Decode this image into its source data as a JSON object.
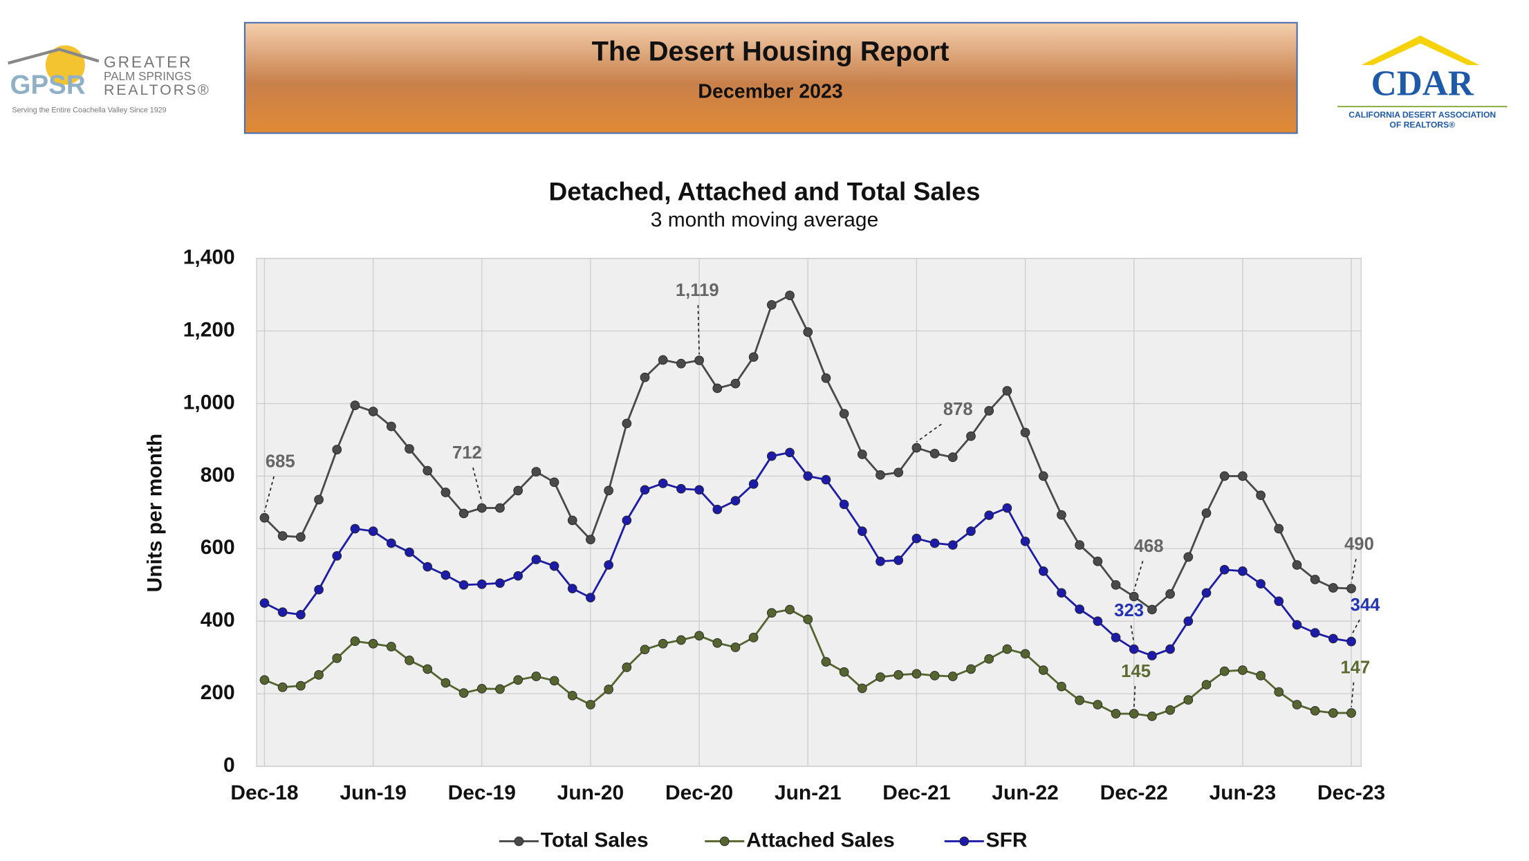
{
  "header": {
    "left_logo": {
      "mark": "GPSR",
      "name_lines": [
        "GREATER",
        "PALM SPRINGS",
        "REALTORS®"
      ],
      "tagline": "Serving the Entire Coachella Valley Since 1929"
    },
    "title": "The Desert Housing Report",
    "subtitle": "December 2023",
    "right_logo": {
      "mark": "CDAR",
      "name_lines": [
        "CALIFORNIA DESERT ASSOCIATION",
        "OF REALTORS®"
      ]
    }
  },
  "chart_data": {
    "type": "line",
    "title": "Detached, Attached and Total Sales",
    "subtitle": "3 month moving average",
    "y_label": "Units per month",
    "categories": [
      "Dec-18",
      null,
      null,
      null,
      null,
      null,
      "Jun-19",
      null,
      null,
      null,
      null,
      null,
      "Dec-19",
      null,
      null,
      null,
      null,
      null,
      "Jun-20",
      null,
      null,
      null,
      null,
      null,
      "Dec-20",
      null,
      null,
      null,
      null,
      null,
      "Jun-21",
      null,
      null,
      null,
      null,
      null,
      "Dec-21",
      null,
      null,
      null,
      null,
      null,
      "Jun-22",
      null,
      null,
      null,
      null,
      null,
      "Dec-22",
      null,
      null,
      null,
      null,
      null,
      "Jun-23",
      null,
      null,
      null,
      null,
      null,
      "Dec-23"
    ],
    "ylim": [
      0,
      1400
    ],
    "yticks": [
      0,
      200,
      400,
      600,
      800,
      {
        "value": 1000,
        "label": "1,000"
      },
      {
        "value": 1200,
        "label": "1,200"
      },
      {
        "value": 1400,
        "label": "1,400"
      }
    ],
    "grid": true,
    "legend": "bottom",
    "series": [
      {
        "name": "Total Sales",
        "color": "#4a4a4a",
        "label_color": "#666666",
        "values": [
          685,
          635,
          632,
          735,
          873,
          995,
          978,
          937,
          875,
          815,
          755,
          697,
          712,
          712,
          760,
          812,
          783,
          678,
          625,
          760,
          945,
          1072,
          1120,
          1110,
          1119,
          1042,
          1055,
          1128,
          1272,
          1298,
          1197,
          1070,
          972,
          860,
          803,
          810,
          878,
          862,
          852,
          910,
          980,
          1035,
          920,
          800,
          693,
          610,
          565,
          500,
          468,
          432,
          475,
          577,
          698,
          800,
          800,
          747,
          655,
          555,
          515,
          492,
          490
        ],
        "value_labels": [
          "685",
          null,
          null,
          null,
          null,
          null,
          null,
          null,
          null,
          null,
          null,
          null,
          "712",
          null,
          null,
          null,
          null,
          null,
          null,
          null,
          null,
          null,
          null,
          null,
          "1,119",
          null,
          null,
          null,
          null,
          null,
          null,
          null,
          null,
          null,
          null,
          null,
          "878",
          null,
          null,
          null,
          null,
          null,
          null,
          null,
          null,
          null,
          null,
          null,
          "468",
          null,
          null,
          null,
          null,
          null,
          null,
          null,
          null,
          null,
          null,
          null,
          "490"
        ]
      },
      {
        "name": "Attached Sales",
        "color": "#56652f",
        "label_color": "#5a6a30",
        "values": [
          238,
          218,
          222,
          252,
          298,
          345,
          338,
          330,
          292,
          268,
          230,
          202,
          214,
          213,
          238,
          248,
          236,
          195,
          170,
          212,
          273,
          322,
          338,
          348,
          360,
          340,
          328,
          355,
          423,
          432,
          405,
          288,
          260,
          215,
          246,
          252,
          255,
          250,
          248,
          268,
          296,
          323,
          310,
          265,
          220,
          182,
          170,
          145,
          145,
          138,
          155,
          183,
          225,
          262,
          265,
          250,
          205,
          170,
          153,
          147,
          147
        ],
        "value_labels": [
          null,
          null,
          null,
          null,
          null,
          null,
          null,
          null,
          null,
          null,
          null,
          null,
          null,
          null,
          null,
          null,
          null,
          null,
          null,
          null,
          null,
          null,
          null,
          null,
          null,
          null,
          null,
          null,
          null,
          null,
          null,
          null,
          null,
          null,
          null,
          null,
          null,
          null,
          null,
          null,
          null,
          null,
          null,
          null,
          null,
          null,
          null,
          null,
          "145",
          null,
          null,
          null,
          null,
          null,
          null,
          null,
          null,
          null,
          null,
          null,
          "147"
        ]
      },
      {
        "name": "SFR",
        "color": "#1c1ca8",
        "label_color": "#2433b5",
        "values": [
          450,
          425,
          418,
          487,
          580,
          655,
          648,
          615,
          590,
          550,
          527,
          500,
          502,
          505,
          525,
          570,
          552,
          490,
          465,
          555,
          678,
          762,
          780,
          765,
          762,
          708,
          732,
          778,
          855,
          865,
          800,
          790,
          722,
          648,
          565,
          568,
          628,
          615,
          610,
          648,
          692,
          712,
          620,
          538,
          478,
          433,
          400,
          355,
          323,
          305,
          323,
          400,
          478,
          542,
          538,
          503,
          455,
          390,
          368,
          352,
          344
        ],
        "value_labels": [
          null,
          null,
          null,
          null,
          null,
          null,
          null,
          null,
          null,
          null,
          null,
          null,
          null,
          null,
          null,
          null,
          null,
          null,
          null,
          null,
          null,
          null,
          null,
          null,
          null,
          null,
          null,
          null,
          null,
          null,
          null,
          null,
          null,
          null,
          null,
          null,
          null,
          null,
          null,
          null,
          null,
          null,
          null,
          null,
          null,
          null,
          null,
          null,
          "323",
          null,
          null,
          null,
          null,
          null,
          null,
          null,
          null,
          null,
          null,
          null,
          "344"
        ]
      }
    ]
  }
}
